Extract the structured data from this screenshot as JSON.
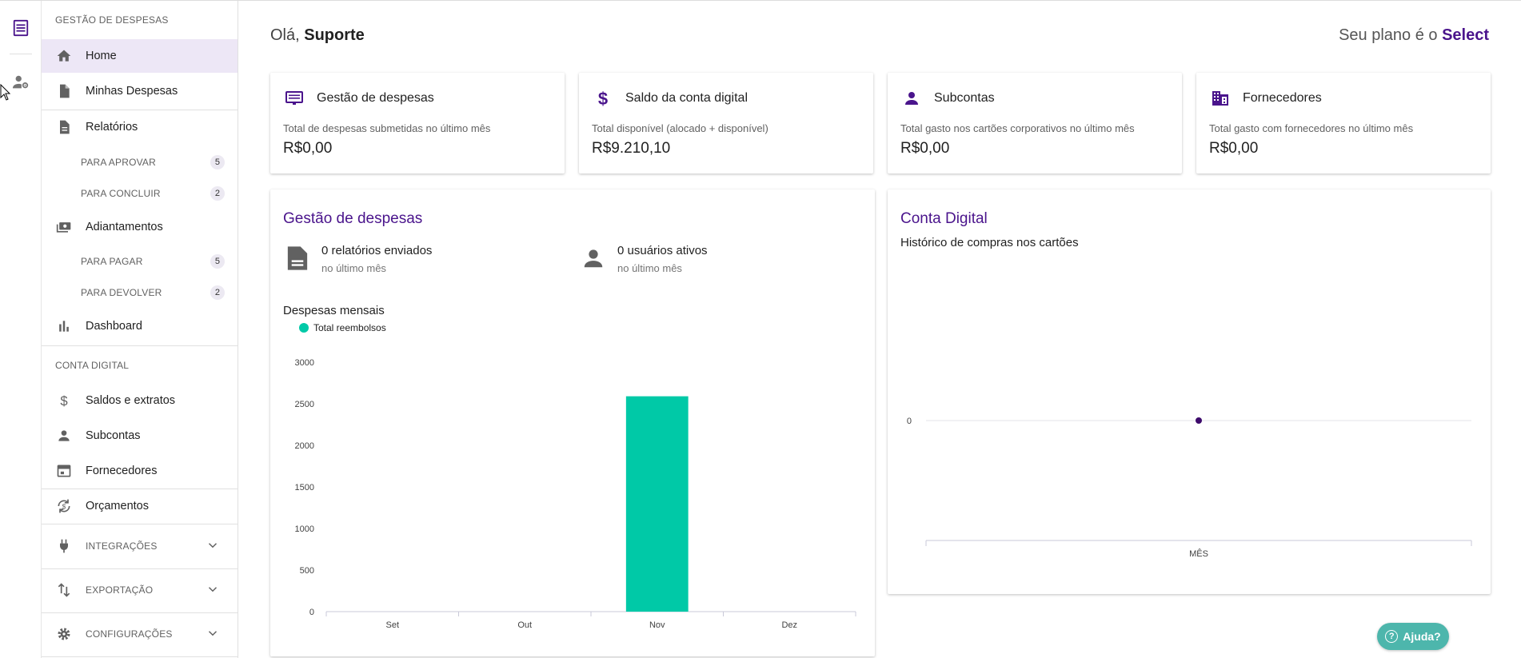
{
  "sidebar": {
    "section_expenses": "GESTÃO DE DESPESAS",
    "home": "Home",
    "my_expenses": "Minhas Despesas",
    "reports": "Relatórios",
    "to_approve": {
      "label": "PARA APROVAR",
      "count": "5"
    },
    "to_finish": {
      "label": "PARA CONCLUIR",
      "count": "2"
    },
    "advances": "Adiantamentos",
    "to_pay": {
      "label": "PARA PAGAR",
      "count": "5"
    },
    "to_return": {
      "label": "PARA DEVOLVER",
      "count": "2"
    },
    "dashboard": "Dashboard",
    "section_digital": "CONTA DIGITAL",
    "balances": "Saldos e extratos",
    "subaccounts": "Subcontas",
    "suppliers": "Fornecedores",
    "budgets": "Orçamentos",
    "integrations": "INTEGRAÇÕES",
    "export": "EXPORTAÇÃO",
    "settings": "CONFIGURAÇÕES"
  },
  "header": {
    "greeting": "Olá,",
    "user": "Suporte",
    "plan_prefix": "Seu plano é o",
    "plan": "Select"
  },
  "cards": [
    {
      "title": "Gestão de despesas",
      "desc": "Total de despesas submetidas no último mês",
      "value": "R$0,00"
    },
    {
      "title": "Saldo da conta digital",
      "desc": "Total disponível (alocado + disponível)",
      "value": "R$9.210,10"
    },
    {
      "title": "Subcontas",
      "desc": "Total gasto nos cartões corporativos no último mês",
      "value": "R$0,00"
    },
    {
      "title": "Fornecedores",
      "desc": "Total gasto com fornecedores no último mês",
      "value": "R$0,00"
    }
  ],
  "expenses_panel": {
    "title": "Gestão de despesas",
    "reports_sent": "0 relatórios enviados",
    "reports_period": "no último mês",
    "active_users": "0 usuários ativos",
    "users_period": "no último mês",
    "chart_title": "Despesas mensais"
  },
  "digital_panel": {
    "title": "Conta Digital",
    "subtitle": "Histórico de compras nos cartões"
  },
  "chart_data": [
    {
      "type": "bar",
      "title": "Despesas mensais",
      "categories": [
        "Set",
        "Out",
        "Nov",
        "Dez"
      ],
      "series": [
        {
          "name": "Total reembolsos",
          "values": [
            0,
            0,
            2590,
            0
          ],
          "color": "#00c9a7"
        }
      ],
      "yticks": [
        0,
        500,
        1000,
        1500,
        2000,
        2500,
        3000
      ],
      "ylim": [
        0,
        3000
      ],
      "legend": "top-left"
    },
    {
      "type": "line",
      "xlabel": "MÊS",
      "yticks": [
        0
      ],
      "points": [
        {
          "x": 0,
          "y": 0
        }
      ],
      "color": "#3d0a6b"
    }
  ],
  "help": {
    "label": "Ajuda?",
    "icon": "question-icon"
  },
  "colors": {
    "brand": "#4a148c",
    "bar": "#00c9a7",
    "help": "#4db6ac"
  }
}
